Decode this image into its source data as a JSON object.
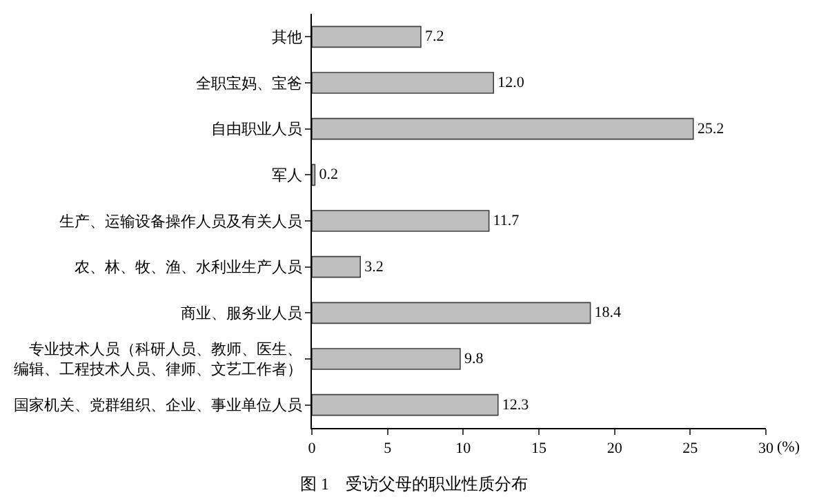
{
  "chart_data": {
    "type": "bar",
    "orientation": "horizontal",
    "title": "图 1　受访父母的职业性质分布",
    "xlabel": "(%)",
    "categories": [
      "其他",
      "全职宝妈、宝爸",
      "自由职业人员",
      "军人",
      "生产、运输设备操作人员及有关人员",
      "农、林、牧、渔、水利业生产人员",
      "商业、服务业人员",
      "专业技术人员（科研人员、教师、医生、编辑、工程技术人员、律师、文艺工作者）",
      "国家机关、党群组织、企业、事业单位人员"
    ],
    "values": [
      7.2,
      12.0,
      25.2,
      0.2,
      11.7,
      3.2,
      18.4,
      9.8,
      12.3
    ],
    "value_labels": [
      "7.2",
      "12.0",
      "25.2",
      "0.2",
      "11.7",
      "3.2",
      "18.4",
      "9.8",
      "12.3"
    ],
    "color": "#bfbfbf",
    "xlim": [
      0,
      30
    ],
    "xticks": [
      0,
      5,
      10,
      15,
      20,
      25,
      30
    ],
    "legend": false
  }
}
